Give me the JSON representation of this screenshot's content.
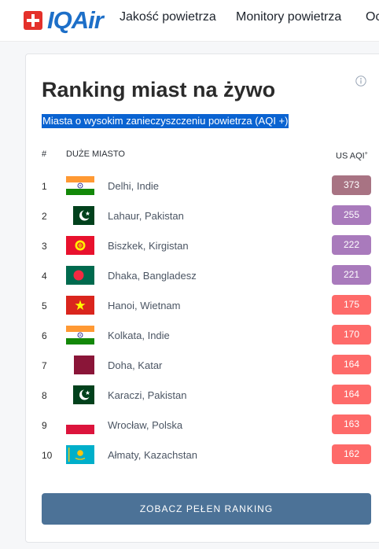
{
  "header": {
    "logo_text": "IQAir",
    "nav": [
      "Jakość powietrza",
      "Monitory powietrza",
      "Oc"
    ]
  },
  "ranking": {
    "title": "Ranking miast na żywo",
    "subtitle": "Miasta o wysokim zanieczyszczeniu powietrza (AQI +)",
    "info_icon": "info-icon",
    "columns": {
      "rank": "#",
      "city": "DUŻE MIASTO",
      "aqi": "US AQI",
      "aqi_sup": "+"
    },
    "rows": [
      {
        "rank": "1",
        "city": "Delhi, Indie",
        "aqi": "373",
        "flag": "india",
        "level": "hazardous"
      },
      {
        "rank": "2",
        "city": "Lahaur, Pakistan",
        "aqi": "255",
        "flag": "pakistan",
        "level": "very-unhealthy"
      },
      {
        "rank": "3",
        "city": "Biszkek, Kirgistan",
        "aqi": "222",
        "flag": "kyrgyzstan",
        "level": "very-unhealthy"
      },
      {
        "rank": "4",
        "city": "Dhaka, Bangladesz",
        "aqi": "221",
        "flag": "bangladesh",
        "level": "very-unhealthy"
      },
      {
        "rank": "5",
        "city": "Hanoi, Wietnam",
        "aqi": "175",
        "flag": "vietnam",
        "level": "unhealthy"
      },
      {
        "rank": "6",
        "city": "Kolkata, Indie",
        "aqi": "170",
        "flag": "india",
        "level": "unhealthy"
      },
      {
        "rank": "7",
        "city": "Doha, Katar",
        "aqi": "164",
        "flag": "qatar",
        "level": "unhealthy"
      },
      {
        "rank": "8",
        "city": "Karaczi, Pakistan",
        "aqi": "164",
        "flag": "pakistan",
        "level": "unhealthy"
      },
      {
        "rank": "9",
        "city": "Wrocław, Polska",
        "aqi": "163",
        "flag": "poland",
        "level": "unhealthy"
      },
      {
        "rank": "10",
        "city": "Ałmaty, Kazachstan",
        "aqi": "162",
        "flag": "kazakhstan",
        "level": "unhealthy"
      }
    ],
    "cta_label": "ZOBACZ PEŁEN RANKING"
  },
  "colors": {
    "brand": "#1d6fc8",
    "swiss_red": "#e4312b",
    "aqi_hazardous": "#a87383",
    "aqi_very_unhealthy": "#a97abc",
    "aqi_unhealthy": "#fe6a69",
    "cta": "#4c7297",
    "selection": "#0a63d1"
  }
}
